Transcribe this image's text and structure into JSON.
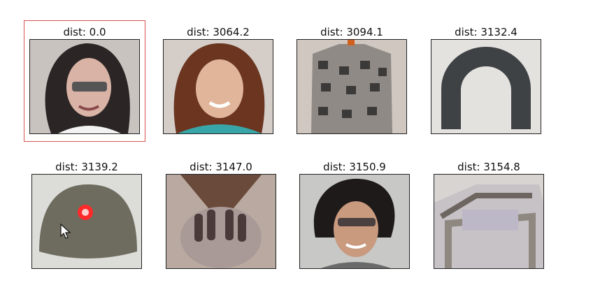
{
  "results": [
    {
      "label": "dist: 0.0",
      "subject": "woman-glasses-dark-hair",
      "selected": true
    },
    {
      "label": "dist: 3064.2",
      "subject": "woman-red-hair-smiling",
      "selected": false
    },
    {
      "label": "dist: 3094.1",
      "subject": "knit-sweater",
      "selected": false
    },
    {
      "label": "dist: 3132.4",
      "subject": "horseshoe",
      "selected": false
    },
    {
      "label": "dist: 3139.2",
      "subject": "military-helmet",
      "selected": false
    },
    {
      "label": "dist: 3147.0",
      "subject": "hands-over-face",
      "selected": false
    },
    {
      "label": "dist: 3150.9",
      "subject": "woman-short-hair-glasses",
      "selected": false
    },
    {
      "label": "dist: 3154.8",
      "subject": "car-interior",
      "selected": false
    }
  ],
  "colors": {
    "selection_border": "#d9534f",
    "frame_border": "#222222"
  }
}
